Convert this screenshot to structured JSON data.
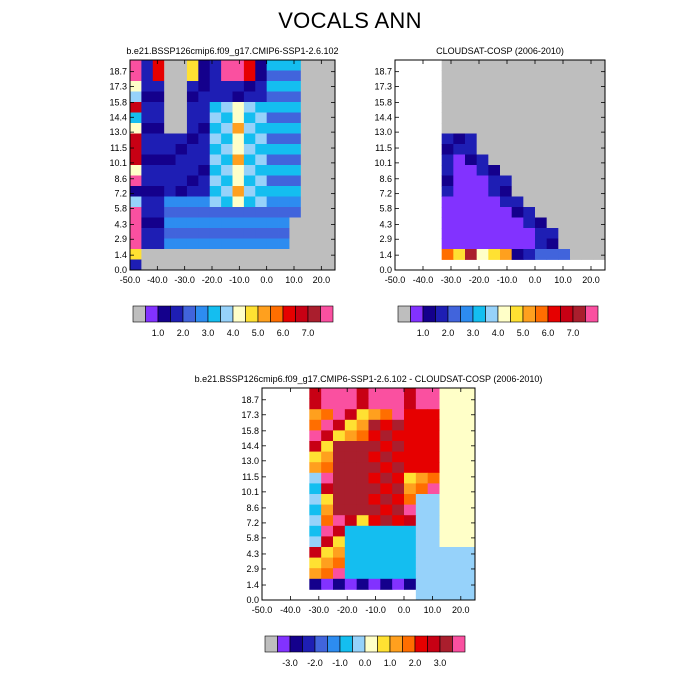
{
  "title": "VOCALS ANN",
  "palettes": {
    "abs": [
      "#bebebe",
      "#8232ff",
      "#14008c",
      "#1e1eb4",
      "#4164dc",
      "#2d8cf0",
      "#14bef0",
      "#96d2fa",
      "#ffffc8",
      "#ffe132",
      "#ffa01e",
      "#ff6e00",
      "#e60000",
      "#c80014",
      "#aa1e2d",
      "#fa50a0"
    ],
    "diff": [
      "#bebebe",
      "#8232ff",
      "#14008c",
      "#1e1eb4",
      "#4164dc",
      "#2d8cf0",
      "#14bef0",
      "#96d2fa",
      "#ffffc8",
      "#ffe132",
      "#ffa01e",
      "#ff6e00",
      "#e60000",
      "#c80014",
      "#aa1e2d",
      "#fa50a0"
    ]
  },
  "chart_data": [
    {
      "type": "heatmap",
      "title": "b.e21.BSSP126cmip6.f09_g17.CMIP6-SSP1-2.6.102",
      "x_ticks": [
        "-50.0",
        "-40.0",
        "-30.0",
        "-20.0",
        "-10.0",
        "0.0",
        "10.0",
        "20.0"
      ],
      "y_ticks": [
        "0.0",
        "1.4",
        "2.9",
        "4.3",
        "5.8",
        "7.2",
        "8.6",
        "10.1",
        "11.5",
        "13.0",
        "14.4",
        "15.8",
        "17.3",
        "18.7"
      ],
      "xlim": [
        -50,
        25
      ],
      "ylim": [
        0,
        19.8
      ],
      "colorbar_ticks": [
        "1.0",
        "2.0",
        "3.0",
        "4.0",
        "5.0",
        "6.0",
        "7.0"
      ],
      "grid": "shallow ring of cloud fraction near the surface, high column near 0 lon",
      "rows": [
        "P===.............",
        "P1...............",
        "PX11111.,,,XX11..",
        "P6,,,,,,,,,XX11..",
        "P1,,,,,,,,,,X1...",
        "P1,,,,,,,,,,1....",
        "P1,,,,,,,,,,.....",
        "P611,,,,,,,,.....",
        "P611,,,,,,,,,,...",
        "P6111,,,,,,,,,...",
        "P61,,2,,,,,,,,...",
        "P6111111111,,,,..",
        "P111111111,,,,,..",
        "P111,,,,,,,,,,,..",
        "P6,,,,,,,,,,,....",
        "P11111111X11X11..",
        "P6,,,,,,,,,,,,,..",
        "P111,,,,,,,,,,,..",
        "P111,,,,,,,,,,...",
        "P6,,,,,,,,,,,,..."
      ],
      "cells": "coarse pixel grid approximated by rows of class codes"
    },
    {
      "type": "heatmap",
      "title": "CLOUDSAT-COSP (2006-2010)",
      "x_ticks": [
        "-50.0",
        "-40.0",
        "-30.0",
        "-20.0",
        "-10.0",
        "0.0",
        "10.0",
        "20.0"
      ],
      "y_ticks": [
        "0.0",
        "1.4",
        "2.9",
        "4.3",
        "5.8",
        "7.2",
        "8.6",
        "10.1",
        "11.5",
        "13.0",
        "14.4",
        "15.8",
        "17.3",
        "18.7"
      ],
      "xlim": [
        -50,
        25
      ],
      "ylim": [
        0,
        19.8
      ],
      "colorbar_ticks": [
        "1.0",
        "2.0",
        "3.0",
        "4.0",
        "5.0",
        "6.0",
        "7.0"
      ]
    },
    {
      "type": "heatmap",
      "title": "b.e21.BSSP126cmip6.f09_g17.CMIP6-SSP1-2.6.102 - CLOUDSAT-COSP (2006-2010)",
      "x_ticks": [
        "-50.0",
        "-40.0",
        "-30.0",
        "-20.0",
        "-10.0",
        "0.0",
        "10.0",
        "20.0"
      ],
      "y_ticks": [
        "0.0",
        "1.4",
        "2.9",
        "4.3",
        "5.8",
        "7.2",
        "8.6",
        "10.1",
        "11.5",
        "13.0",
        "14.4",
        "15.8",
        "17.3",
        "18.7"
      ],
      "xlim": [
        -50,
        25
      ],
      "ylim": [
        0,
        19.8
      ],
      "colorbar_ticks": [
        "-3.0",
        "-2.0",
        "-1.0",
        "0.0",
        "1.0",
        "2.0",
        "3.0"
      ]
    }
  ]
}
